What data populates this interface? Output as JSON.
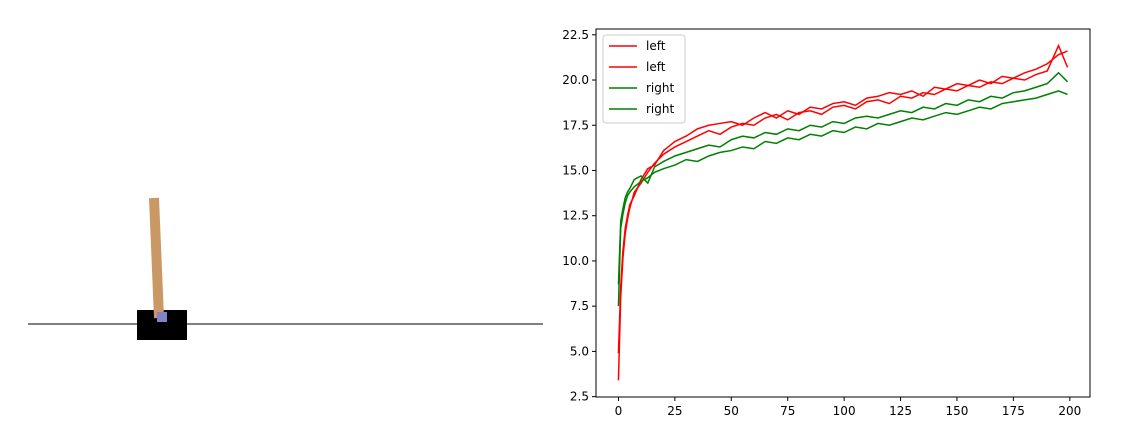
{
  "chart_data": {
    "type": "line",
    "x": [
      0,
      1,
      2,
      3,
      4,
      5,
      7,
      10,
      13,
      16,
      20,
      25,
      30,
      35,
      40,
      45,
      50,
      55,
      60,
      65,
      70,
      75,
      80,
      85,
      90,
      95,
      100,
      105,
      110,
      115,
      120,
      125,
      130,
      135,
      140,
      145,
      150,
      155,
      160,
      165,
      170,
      175,
      180,
      185,
      190,
      195,
      199
    ],
    "series": [
      {
        "name": "left",
        "color": "#ff0000",
        "values": [
          3.4,
          8.0,
          10.2,
          11.5,
          12.3,
          12.9,
          13.8,
          14.3,
          14.9,
          15.4,
          15.9,
          16.3,
          16.6,
          16.9,
          17.2,
          17.0,
          17.4,
          17.6,
          17.5,
          17.9,
          18.1,
          17.8,
          18.2,
          18.3,
          18.1,
          18.5,
          18.6,
          18.4,
          18.8,
          18.9,
          18.7,
          19.1,
          19.0,
          19.3,
          19.2,
          19.5,
          19.4,
          19.7,
          19.6,
          19.9,
          19.8,
          20.1,
          20.0,
          20.3,
          20.5,
          21.9,
          20.7
        ]
      },
      {
        "name": "left",
        "color": "#ff0000",
        "values": [
          4.9,
          8.6,
          10.6,
          11.8,
          12.5,
          13.1,
          13.6,
          14.5,
          15.1,
          15.3,
          16.1,
          16.6,
          16.9,
          17.3,
          17.5,
          17.6,
          17.7,
          17.5,
          17.9,
          18.2,
          17.9,
          18.3,
          18.1,
          18.5,
          18.4,
          18.7,
          18.8,
          18.6,
          19.0,
          19.1,
          19.3,
          19.2,
          19.4,
          19.1,
          19.6,
          19.5,
          19.8,
          19.7,
          20.0,
          19.8,
          20.2,
          20.1,
          20.4,
          20.6,
          20.9,
          21.4,
          21.6
        ]
      },
      {
        "name": "right",
        "color": "#008000",
        "values": [
          7.5,
          11.8,
          12.6,
          13.2,
          13.6,
          13.8,
          14.1,
          14.4,
          14.6,
          14.9,
          15.1,
          15.3,
          15.6,
          15.5,
          15.8,
          16.0,
          16.1,
          16.3,
          16.2,
          16.6,
          16.5,
          16.8,
          16.7,
          17.0,
          16.9,
          17.2,
          17.1,
          17.4,
          17.3,
          17.6,
          17.5,
          17.7,
          17.9,
          17.8,
          18.0,
          18.2,
          18.1,
          18.3,
          18.5,
          18.4,
          18.7,
          18.8,
          18.9,
          19.0,
          19.2,
          19.4,
          19.2
        ]
      },
      {
        "name": "right",
        "color": "#008000",
        "values": [
          8.7,
          12.2,
          12.9,
          13.5,
          13.8,
          14.0,
          14.5,
          14.7,
          14.3,
          15.2,
          15.5,
          15.8,
          16.0,
          16.2,
          16.4,
          16.3,
          16.7,
          16.9,
          16.8,
          17.1,
          17.0,
          17.3,
          17.2,
          17.5,
          17.4,
          17.7,
          17.6,
          17.9,
          18.0,
          17.9,
          18.1,
          18.3,
          18.2,
          18.5,
          18.4,
          18.7,
          18.6,
          18.9,
          18.8,
          19.1,
          19.0,
          19.3,
          19.4,
          19.6,
          19.8,
          20.4,
          19.9
        ]
      }
    ],
    "xlim": [
      -9.95,
      208.95
    ],
    "xticks": [
      0,
      25,
      50,
      75,
      100,
      125,
      150,
      175,
      200
    ],
    "ylim": [
      2.48,
      22.82
    ],
    "yticks": [
      2.5,
      {
        "value": 5,
        "label": "5.0"
      },
      7.5,
      {
        "value": 10,
        "label": "10.0"
      },
      12.5,
      {
        "value": 15,
        "label": "15.0"
      },
      17.5,
      {
        "value": 20,
        "label": "20.0"
      },
      22.5
    ],
    "legend": "upper left"
  }
}
